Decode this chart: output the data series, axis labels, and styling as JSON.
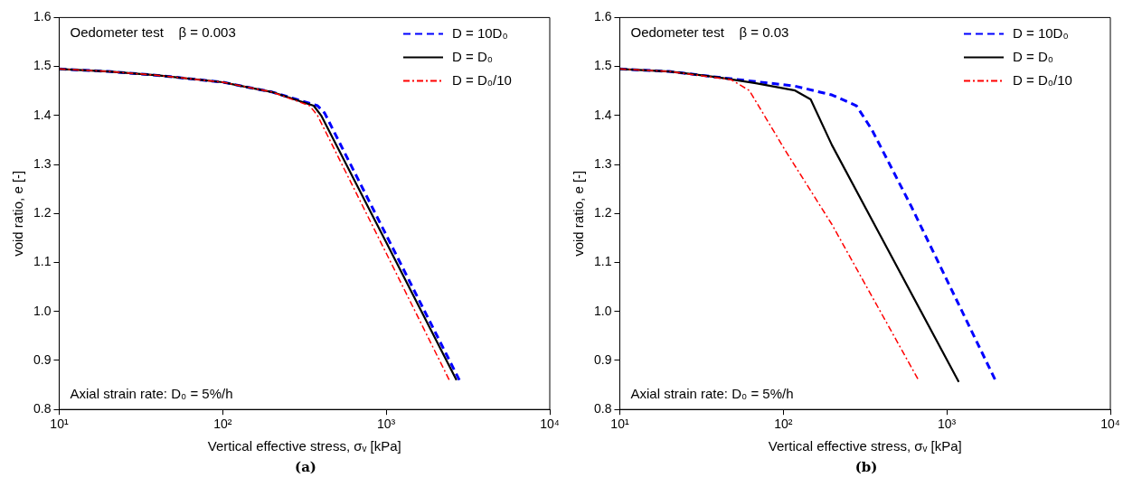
{
  "chart_data": [
    {
      "type": "line",
      "xlabel": "Vertical effective stress, σᵥ [kPa]",
      "ylabel": "void ratio, e [-]",
      "log": "x",
      "xlim": [
        10,
        10000
      ],
      "ylim": [
        0.8,
        1.6
      ],
      "xticks": [
        {
          "value": 10,
          "label": "10¹"
        },
        {
          "value": 100,
          "label": "10²"
        },
        {
          "value": 1000,
          "label": "10³"
        },
        {
          "value": 10000,
          "label": "10⁴"
        }
      ],
      "yticks": [
        0.8,
        0.9,
        {
          "value": 1,
          "label": "1.0"
        },
        1.1,
        1.2,
        1.3,
        1.4,
        1.5,
        1.6
      ],
      "grid": false,
      "legend": "top right",
      "marker": "none",
      "annotations": [
        "Oedometer test    β = 0.003",
        "Axial strain rate: D₀ = 5%/h",
        "(a)"
      ],
      "series": [
        {
          "name": "D = 10D₀",
          "color": "#0000ff",
          "line_style": "dashed",
          "x": [
            10,
            20,
            40,
            100,
            200,
            380,
            420,
            1000,
            2800
          ],
          "values": [
            1.495,
            1.49,
            1.482,
            1.468,
            1.448,
            1.42,
            1.405,
            1.156,
            0.86
          ]
        },
        {
          "name": "D = D₀",
          "color": "#000000",
          "line_style": "solid",
          "x": [
            10,
            20,
            40,
            100,
            200,
            360,
            400,
            1000,
            2690
          ],
          "values": [
            1.495,
            1.49,
            1.482,
            1.468,
            1.448,
            1.42,
            1.4,
            1.141,
            0.86
          ]
        },
        {
          "name": "D = D₀/10",
          "color": "#ff0000",
          "line_style": "dashdot",
          "x": [
            10,
            20,
            40,
            100,
            200,
            340,
            380,
            1000,
            2430
          ],
          "values": [
            1.495,
            1.49,
            1.482,
            1.468,
            1.448,
            1.42,
            1.4,
            1.119,
            0.86
          ]
        }
      ]
    },
    {
      "type": "line",
      "xlabel": "Vertical effective stress, σᵥ [kPa]",
      "ylabel": "void ratio, e [-]",
      "log": "x",
      "xlim": [
        10,
        10000
      ],
      "ylim": [
        0.8,
        1.6
      ],
      "xticks": [
        {
          "value": 10,
          "label": "10¹"
        },
        {
          "value": 100,
          "label": "10²"
        },
        {
          "value": 1000,
          "label": "10³"
        },
        {
          "value": 10000,
          "label": "10⁴"
        }
      ],
      "yticks": [
        0.8,
        0.9,
        {
          "value": 1,
          "label": "1.0"
        },
        1.1,
        1.2,
        1.3,
        1.4,
        1.5,
        1.6
      ],
      "grid": false,
      "legend": "top right",
      "marker": "none",
      "annotations": [
        "Oedometer test    β = 0.03",
        "Axial strain rate: D₀ = 5%/h",
        "(b)"
      ],
      "series": [
        {
          "name": "D = 10D₀",
          "color": "#0000ff",
          "line_style": "dashed",
          "x": [
            10,
            20,
            40,
            118,
            198,
            280,
            348,
            605,
            2005
          ],
          "values": [
            1.495,
            1.49,
            1.478,
            1.46,
            1.442,
            1.42,
            1.371,
            1.215,
            0.856
          ]
        },
        {
          "name": "D = D₀",
          "color": "#000000",
          "line_style": "solid",
          "x": [
            10,
            20,
            40,
            68,
            118,
            147,
            198,
            1183
          ],
          "values": [
            1.495,
            1.49,
            1.478,
            1.466,
            1.451,
            1.433,
            1.34,
            0.856
          ]
        },
        {
          "name": "D = D₀/10",
          "color": "#ff0000",
          "line_style": "dashdot",
          "x": [
            10,
            20,
            48,
            62,
            104,
            198,
            671
          ],
          "values": [
            1.495,
            1.49,
            1.473,
            1.451,
            1.326,
            1.178,
            0.86
          ]
        }
      ]
    }
  ]
}
